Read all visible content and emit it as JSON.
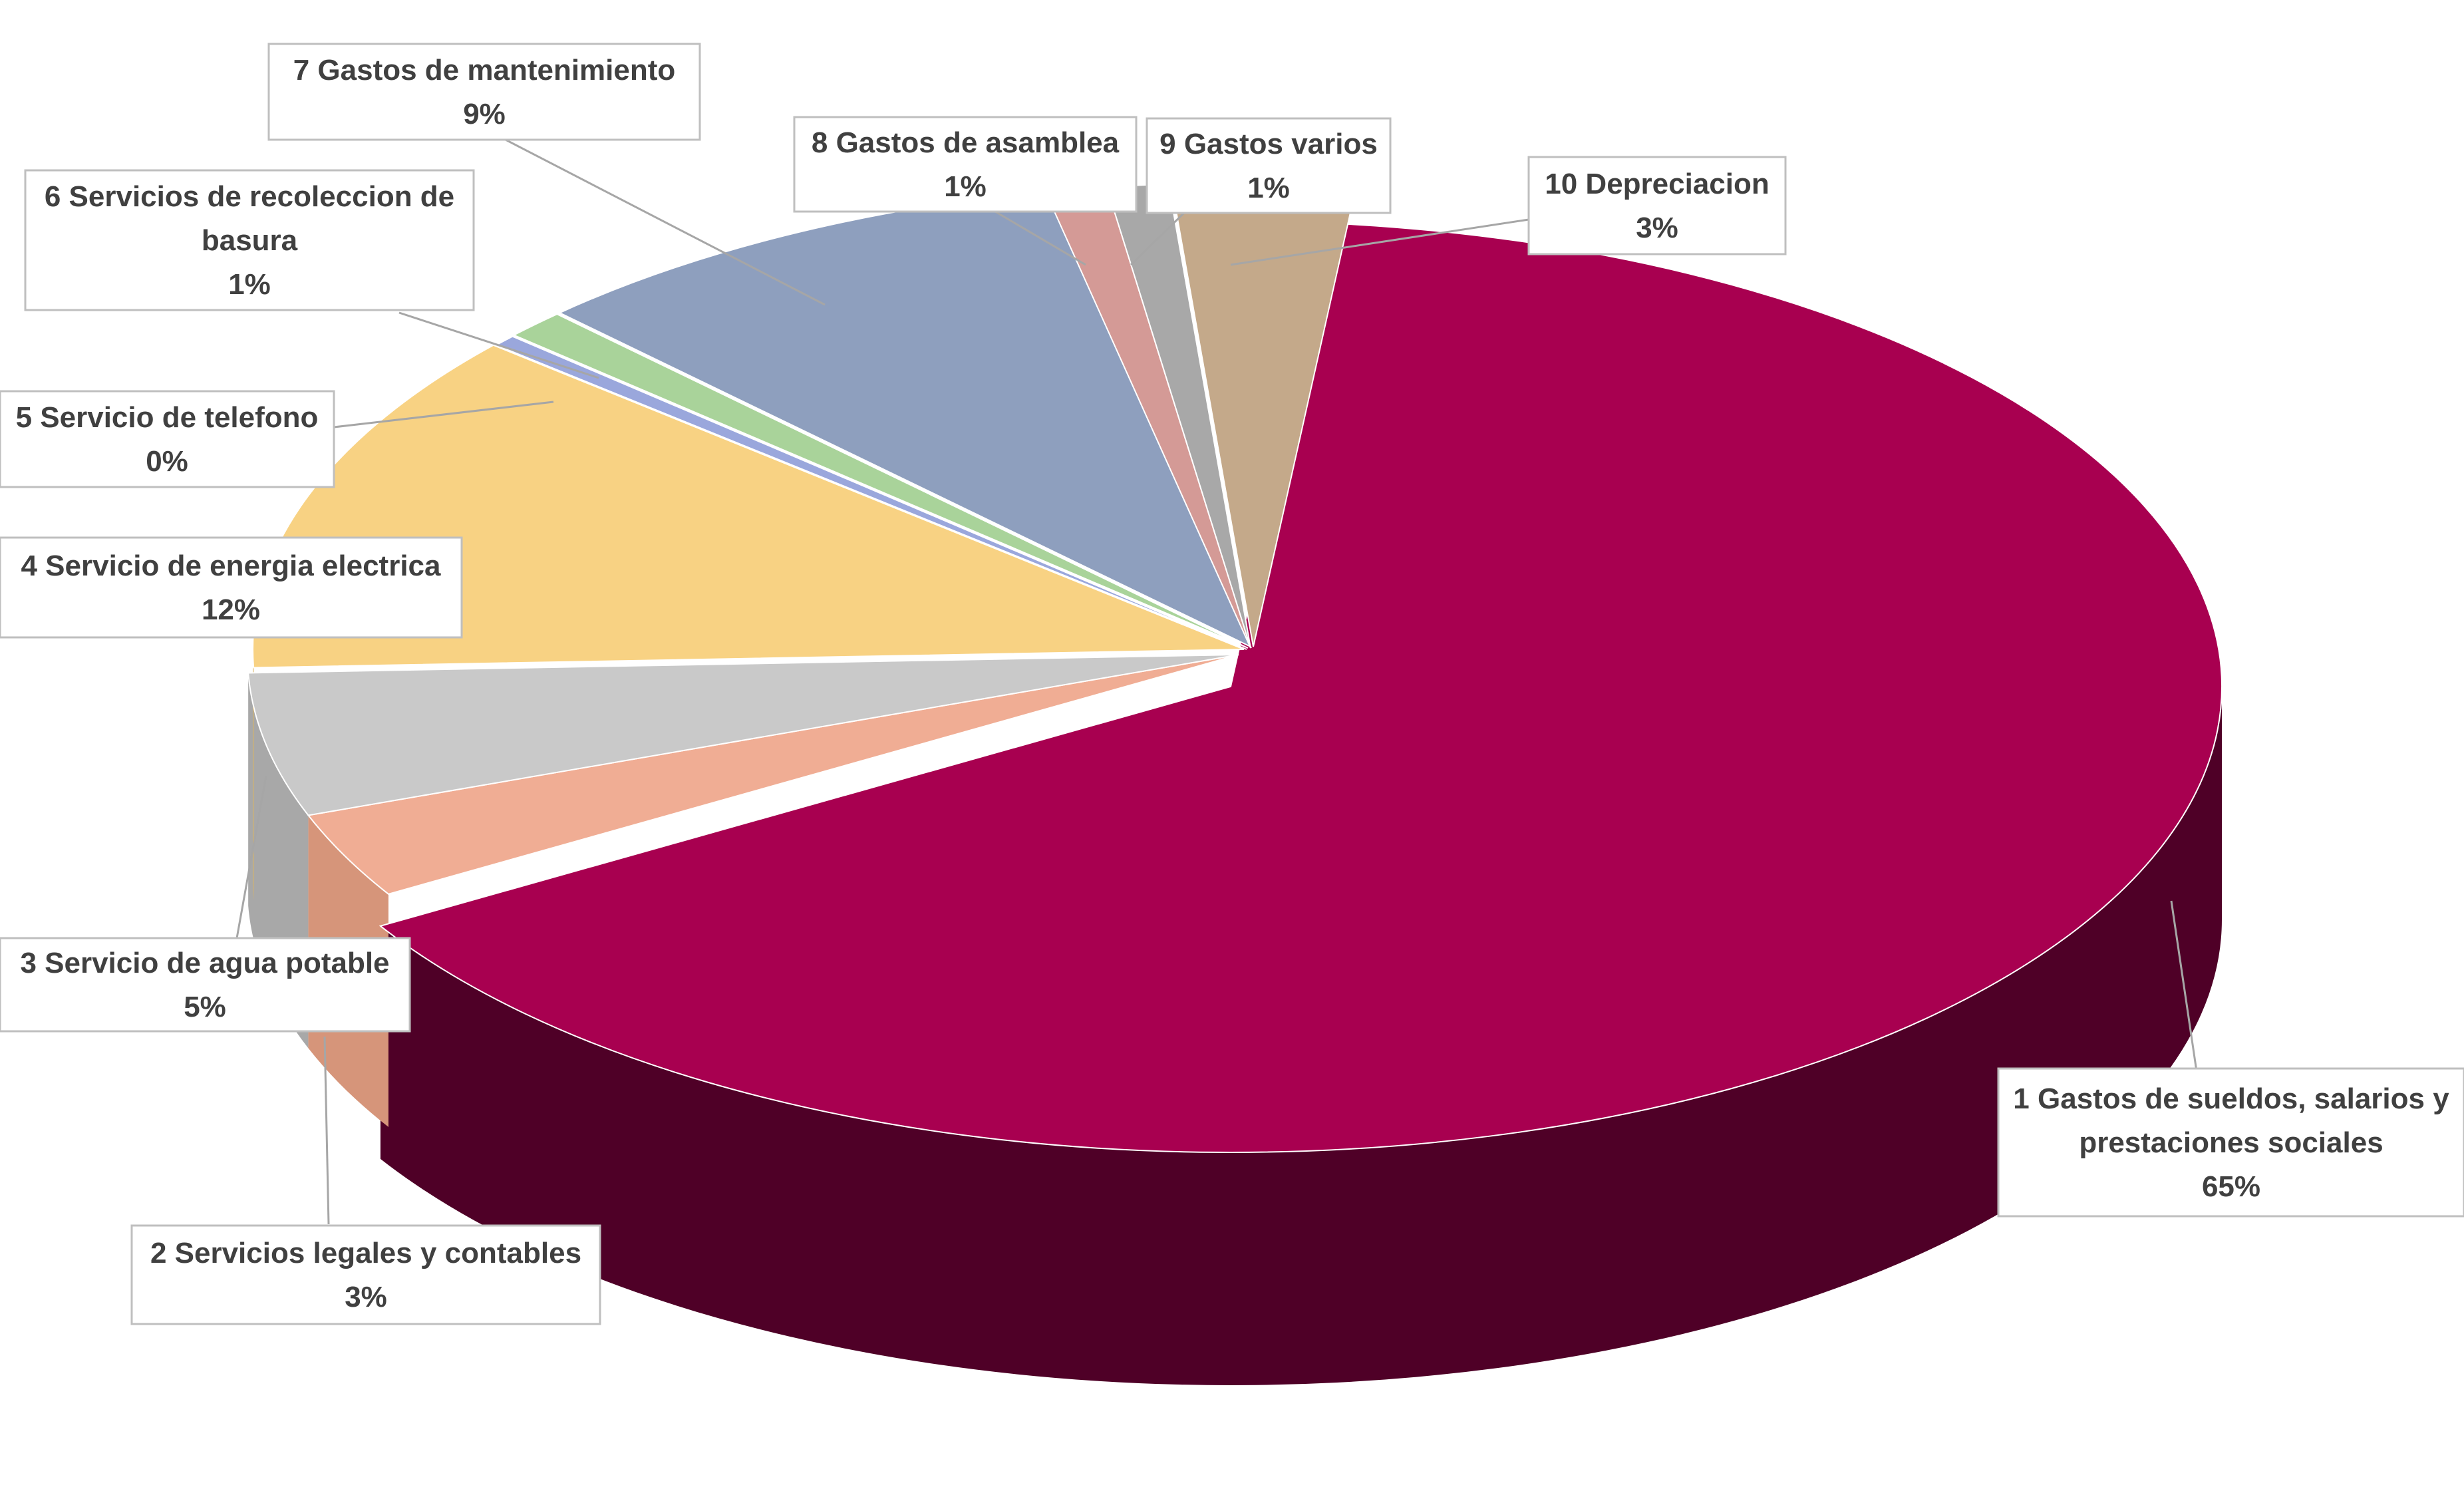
{
  "chart_data": {
    "type": "pie",
    "title": "",
    "style": "3d-exploded",
    "slices": [
      {
        "label": "1 Gastos de sueldos, salarios y prestaciones sociales",
        "pct_text": "65%",
        "value": 65,
        "color": "#a80050",
        "side_color": "#4f0027"
      },
      {
        "label": "2 Servicios legales y contables",
        "pct_text": "3%",
        "value": 3,
        "color": "#f0ad94",
        "side_color": "#d6957a"
      },
      {
        "label": "3 Servicio de agua potable",
        "pct_text": "5%",
        "value": 5,
        "color": "#c9c9c9",
        "side_color": "#a8a8a8"
      },
      {
        "label": "4 Servicio de energia electrica",
        "pct_text": "12%",
        "value": 12,
        "color": "#f8d283",
        "side_color": "#d9b466"
      },
      {
        "label": "5 Servicio de telefono",
        "pct_text": "0%",
        "value": 0.4,
        "color": "#9aa7dc",
        "side_color": "#7d8ac0"
      },
      {
        "label": "6 Servicios de recoleccion de basura",
        "pct_text": "1%",
        "value": 1,
        "color": "#a9d39a",
        "side_color": "#8bb37c"
      },
      {
        "label": "7 Gastos de mantenimiento",
        "pct_text": "9%",
        "value": 9,
        "color": "#8e9fbe",
        "side_color": "#6f7f9c"
      },
      {
        "label": "8 Gastos de asamblea",
        "pct_text": "1%",
        "value": 1,
        "color": "#d49a96",
        "side_color": "#b37c78"
      },
      {
        "label": "9 Gastos varios",
        "pct_text": "1%",
        "value": 1,
        "color": "#a8a8a8",
        "side_color": "#8a8a8a"
      },
      {
        "label": "10 Depreciacion",
        "pct_text": "3%",
        "value": 3,
        "color": "#c4a98a",
        "side_color": "#a48b6d"
      }
    ],
    "label_lines": [
      [
        "1 Gastos de sueldos, salarios y",
        "prestaciones sociales",
        "65%"
      ],
      [
        "2 Servicios legales y contables",
        "3%"
      ],
      [
        "3 Servicio de agua potable",
        "5%"
      ],
      [
        "4 Servicio de energia electrica",
        "12%"
      ],
      [
        "5 Servicio de telefono",
        "0%"
      ],
      [
        "6 Servicios de recoleccion de",
        "basura",
        "1%"
      ],
      [
        "7 Gastos de mantenimiento",
        "9%"
      ],
      [
        "8 Gastos de asamblea",
        "1%"
      ],
      [
        "9 Gastos varios",
        "1%"
      ],
      [
        "10 Depreciacion",
        "3%"
      ]
    ]
  }
}
